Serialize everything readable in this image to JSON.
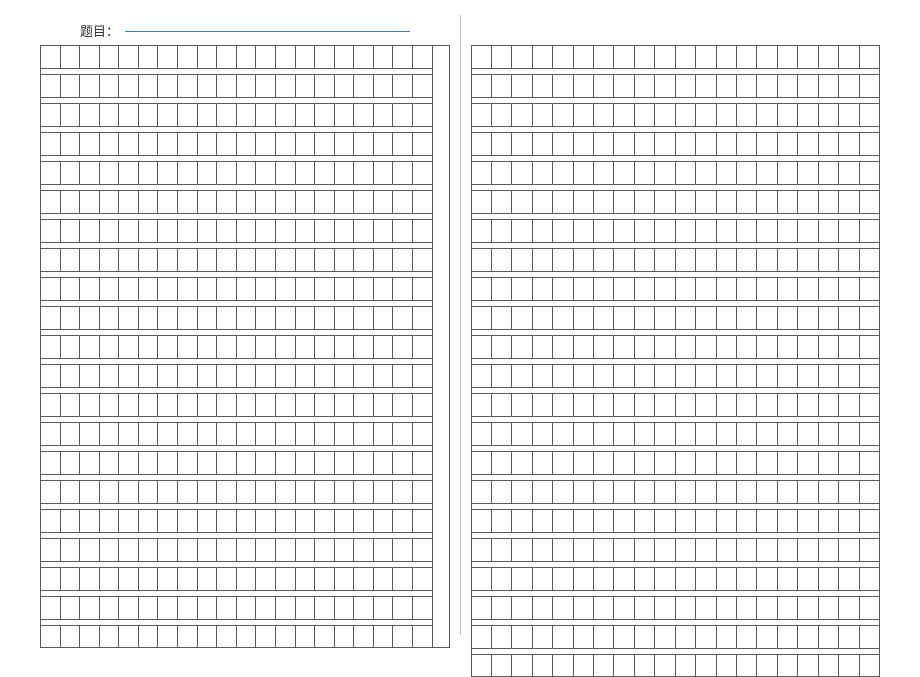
{
  "title": {
    "label": "题目："
  },
  "grid": {
    "cells_per_row": 20,
    "left_page": {
      "rows_before_blank": 12,
      "rows_after_blank": 9,
      "has_right_margin": true
    },
    "right_page": {
      "segment1_rows": 1,
      "segment2_rows": 11,
      "segment3_rows": 5,
      "segment4_rows": 5,
      "has_right_margin": false
    },
    "markers": {
      "m1": "",
      "m2": "",
      "m3": "",
      "m4": "",
      "m5": ""
    },
    "colors": {
      "line_color": "#5a5a5a",
      "title_line_color": "#3d7bb8",
      "divider_color": "#c0c0c0",
      "marker_color": "#6fb96f",
      "background": "#ffffff"
    }
  }
}
